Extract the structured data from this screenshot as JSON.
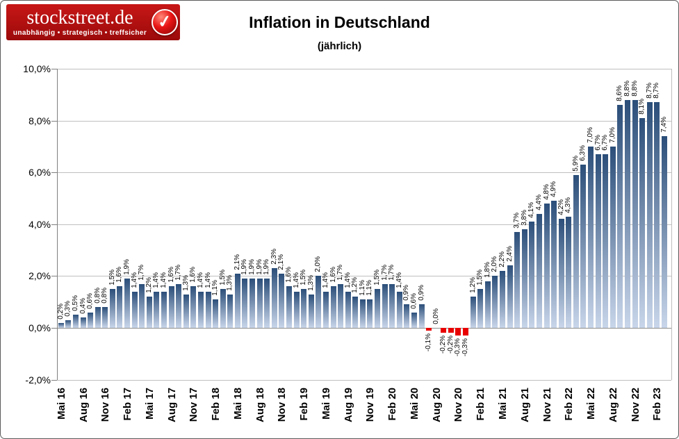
{
  "logo": {
    "brand": "stockstreet.de",
    "tagline": "unabhängig • strategisch • treffsicher",
    "check_icon": "checkmark",
    "bg_top": "#c81717",
    "bg_bottom": "#9c0a0a"
  },
  "header": {
    "title": "Inflation in Deutschland",
    "subtitle": "(jährlich)"
  },
  "chart_data": {
    "type": "bar",
    "title": "Inflation in Deutschland",
    "subtitle": "(jährlich)",
    "xlabel": "",
    "ylabel": "",
    "ylim": [
      -2.0,
      10.0
    ],
    "y_step": 2.0,
    "grid": true,
    "y_tick_labels": [
      "10,0%",
      "8,0%",
      "6,0%",
      "4,0%",
      "2,0%",
      "0,0%",
      "-2,0%"
    ],
    "x_tick_labels_shown_every": 3,
    "x_tick_labels": [
      "Mai 16",
      "Aug 16",
      "Nov 16",
      "Feb 17",
      "Mai 17",
      "Aug 17",
      "Nov 17",
      "Feb 18",
      "Mai 18",
      "Aug 18",
      "Nov 18",
      "Feb 19",
      "Mai 19",
      "Aug 19",
      "Nov 19",
      "Feb 20",
      "Mai 20",
      "Aug 20",
      "Nov 20",
      "Feb 21",
      "Mai 21",
      "Aug 21",
      "Nov 21",
      "Feb 22",
      "Mai 22",
      "Aug 22",
      "Nov 22",
      "Feb 23"
    ],
    "categories": [
      "Mai 16",
      "Jun 16",
      "Jul 16",
      "Aug 16",
      "Sep 16",
      "Okt 16",
      "Nov 16",
      "Dez 16",
      "Jan 17",
      "Feb 17",
      "Mär 17",
      "Apr 17",
      "Mai 17",
      "Jun 17",
      "Jul 17",
      "Aug 17",
      "Sep 17",
      "Okt 17",
      "Nov 17",
      "Dez 17",
      "Jan 18",
      "Feb 18",
      "Mär 18",
      "Apr 18",
      "Mai 18",
      "Jun 18",
      "Jul 18",
      "Aug 18",
      "Sep 18",
      "Okt 18",
      "Nov 18",
      "Dez 18",
      "Jan 19",
      "Feb 19",
      "Mär 19",
      "Apr 19",
      "Mai 19",
      "Jun 19",
      "Jul 19",
      "Aug 19",
      "Sep 19",
      "Okt 19",
      "Nov 19",
      "Dez 19",
      "Jan 20",
      "Feb 20",
      "Mär 20",
      "Apr 20",
      "Mai 20",
      "Jun 20",
      "Jul 20",
      "Aug 20",
      "Sep 20",
      "Okt 20",
      "Nov 20",
      "Dez 20",
      "Jan 21",
      "Feb 21",
      "Mär 21",
      "Apr 21",
      "Mai 21",
      "Jun 21",
      "Jul 21",
      "Aug 21",
      "Sep 21",
      "Okt 21",
      "Nov 21",
      "Dez 21",
      "Jan 22",
      "Feb 22",
      "Mär 22",
      "Apr 22",
      "Mai 22",
      "Jun 22",
      "Jul 22",
      "Aug 22",
      "Sep 22",
      "Okt 22",
      "Nov 22",
      "Dez 22",
      "Jan 23",
      "Feb 23",
      "Mär 23"
    ],
    "values": [
      0.2,
      0.3,
      0.5,
      0.4,
      0.6,
      0.8,
      0.8,
      1.5,
      1.6,
      1.9,
      1.4,
      1.7,
      1.2,
      1.4,
      1.4,
      1.6,
      1.7,
      1.3,
      1.6,
      1.4,
      1.4,
      1.1,
      1.5,
      1.3,
      2.1,
      1.9,
      1.9,
      1.9,
      1.9,
      2.3,
      2.1,
      1.6,
      1.4,
      1.5,
      1.3,
      2.0,
      1.4,
      1.6,
      1.7,
      1.4,
      1.2,
      1.1,
      1.1,
      1.5,
      1.7,
      1.7,
      1.4,
      0.9,
      0.6,
      0.9,
      -0.1,
      0.0,
      -0.2,
      -0.2,
      -0.3,
      -0.3,
      1.2,
      1.5,
      1.8,
      2.0,
      2.2,
      2.4,
      3.7,
      3.8,
      4.1,
      4.4,
      4.8,
      4.9,
      4.2,
      4.3,
      5.9,
      6.3,
      7.0,
      6.7,
      6.7,
      7.0,
      8.6,
      8.8,
      8.8,
      8.1,
      8.7,
      8.7,
      7.4
    ],
    "value_label_format": "0,0%",
    "colors": {
      "bar_gradient_top": "#2b4e79",
      "bar_gradient_bottom": "#c9d6ea",
      "bar_negative": "#e80000",
      "gridline": "#bfbfbf",
      "zero_line": "#8c8c8c",
      "axis_line": "#7f7f7f",
      "plot_border": "#bfbfbf"
    },
    "legend": null
  }
}
